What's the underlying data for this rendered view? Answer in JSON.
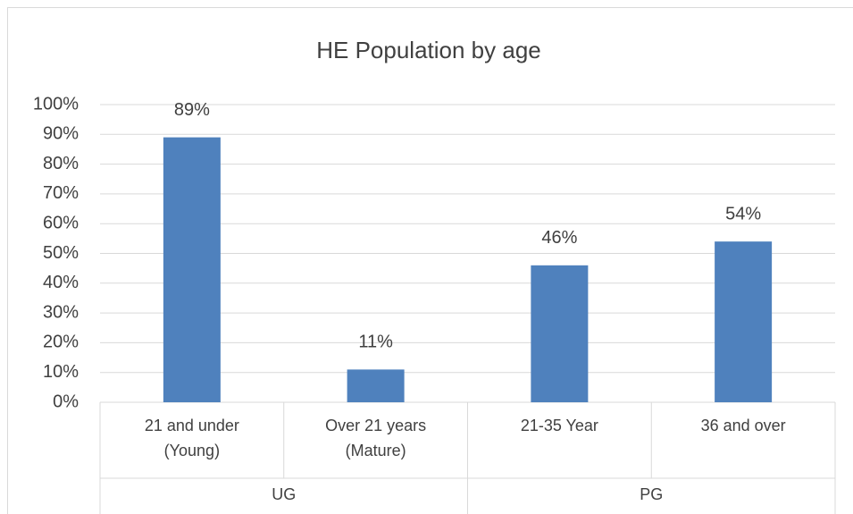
{
  "chart_data": {
    "type": "bar",
    "title": "HE Population by age",
    "categories": [
      "21 and under (Young)",
      "Over 21 years (Mature)",
      "21-35 Year",
      "36 and over"
    ],
    "groups": [
      "UG",
      "UG",
      "PG",
      "PG"
    ],
    "values": [
      89,
      11,
      46,
      54
    ],
    "value_labels": [
      "89%",
      "11%",
      "46%",
      "54%"
    ],
    "color": "#4f81bd",
    "ylim": [
      0,
      100
    ],
    "yticks": [
      {
        "value": 0,
        "label": "0%"
      },
      {
        "value": 10,
        "label": "10%"
      },
      {
        "value": 20,
        "label": "20%"
      },
      {
        "value": 30,
        "label": "30%"
      },
      {
        "value": 40,
        "label": "40%"
      },
      {
        "value": 50,
        "label": "50%"
      },
      {
        "value": 60,
        "label": "60%"
      },
      {
        "value": 70,
        "label": "70%"
      },
      {
        "value": 80,
        "label": "80%"
      },
      {
        "value": 90,
        "label": "90%"
      },
      {
        "value": 100,
        "label": "100%"
      }
    ],
    "grid": true
  }
}
